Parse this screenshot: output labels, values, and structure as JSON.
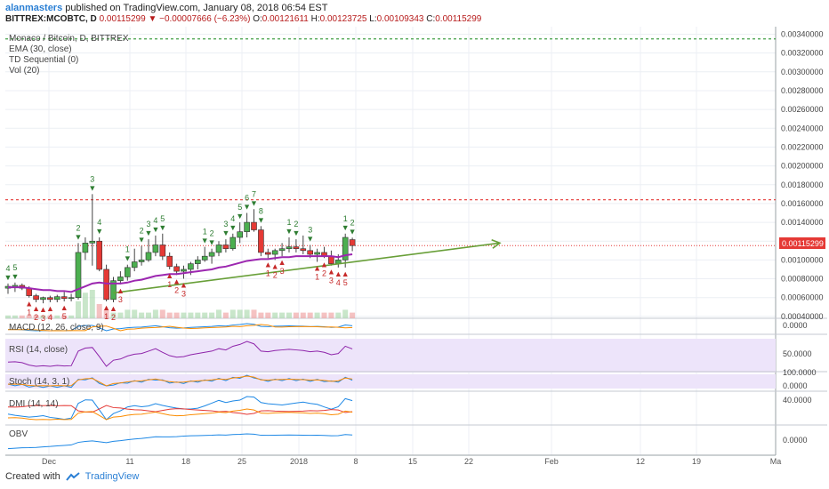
{
  "header": {
    "author": "alanmasters",
    "published": "published on TradingView.com, January 08, 2018 06:54 EST",
    "symbol_line": "BITTREX:MCOBTC, D",
    "last": "0.00115299",
    "change": "▼ −0.00007666 (−6.23%)",
    "o_label": "O:",
    "o_val": "0.00121611",
    "h_label": "H:",
    "h_val": "0.00123725",
    "l_label": "L:",
    "l_val": "0.00109343",
    "c_label": "C:",
    "c_val": "0.00115299"
  },
  "legend": {
    "title": "Monaco / Bitcoin, D, BITTREX",
    "ema": "EMA (30, close)",
    "td": "TD Sequential (0)",
    "vol": "Vol (20)"
  },
  "price_label": "0.00115299",
  "colors": {
    "up": "#4caf50",
    "down": "#e53935",
    "ema": "#9c27b0",
    "trend": "#689f38",
    "resistance": "#e53935",
    "top_line": "#43a047",
    "price_tag": "#e53935"
  },
  "panes": {
    "macd": {
      "label": "MACD (12, 26, close, 9)",
      "tick": "0.0000"
    },
    "rsi": {
      "label": "RSI (14, close)",
      "tick": "50.0000"
    },
    "stoch": {
      "label": "Stoch (14, 3, 1)",
      "tick": "100.0000",
      "tick2": "0.0000"
    },
    "dmi": {
      "label": "DMI (14, 14)",
      "tick": "40.0000"
    },
    "obv": {
      "label": "OBV",
      "tick": "0.0000"
    }
  },
  "footer": {
    "created": "Created with",
    "brand": "TradingView"
  },
  "chart_data": {
    "type": "candlestick",
    "title": "Monaco / Bitcoin, D, BITTREX",
    "y_ticks": [
      "0.00340000",
      "0.00320000",
      "0.00300000",
      "0.00280000",
      "0.00260000",
      "0.00240000",
      "0.00220000",
      "0.00200000",
      "0.00180000",
      "0.00160000",
      "0.00140000",
      "0.00120000",
      "0.00100000",
      "0.00080000",
      "0.00060000",
      "0.00040000"
    ],
    "ylim": [
      0.00038,
      0.00348
    ],
    "x_ticks": [
      "Dec",
      "11",
      "18",
      "25",
      "2018",
      "8",
      "15",
      "22",
      "Feb",
      "12",
      "19",
      "Ma"
    ],
    "grid": true,
    "horizontal_lines": [
      {
        "name": "top",
        "value": 0.00335
      },
      {
        "name": "resistance",
        "value": 0.00164
      },
      {
        "name": "last",
        "value": 0.001153
      }
    ],
    "candles": [
      {
        "o": 0.0007,
        "h": 0.00075,
        "l": 0.00064,
        "c": 0.00072
      },
      {
        "o": 0.00071,
        "h": 0.00076,
        "l": 0.00066,
        "c": 0.00073
      },
      {
        "o": 0.00073,
        "h": 0.00075,
        "l": 0.00068,
        "c": 0.0007
      },
      {
        "o": 0.0007,
        "h": 0.00072,
        "l": 0.0006,
        "c": 0.00062
      },
      {
        "o": 0.00062,
        "h": 0.00064,
        "l": 0.00055,
        "c": 0.00058
      },
      {
        "o": 0.00058,
        "h": 0.00061,
        "l": 0.00054,
        "c": 0.0006
      },
      {
        "o": 0.0006,
        "h": 0.00062,
        "l": 0.00055,
        "c": 0.00058
      },
      {
        "o": 0.00058,
        "h": 0.00063,
        "l": 0.00055,
        "c": 0.00061
      },
      {
        "o": 0.00061,
        "h": 0.00066,
        "l": 0.00056,
        "c": 0.00059
      },
      {
        "o": 0.00059,
        "h": 0.00064,
        "l": 0.00056,
        "c": 0.0006
      },
      {
        "o": 0.0006,
        "h": 0.00118,
        "l": 0.00058,
        "c": 0.00108
      },
      {
        "o": 0.00108,
        "h": 0.00124,
        "l": 0.001,
        "c": 0.00118
      },
      {
        "o": 0.00118,
        "h": 0.0017,
        "l": 0.00094,
        "c": 0.0012
      },
      {
        "o": 0.0012,
        "h": 0.00124,
        "l": 0.00088,
        "c": 0.0009
      },
      {
        "o": 0.0009,
        "h": 0.00095,
        "l": 0.00056,
        "c": 0.00058
      },
      {
        "o": 0.00058,
        "h": 0.00082,
        "l": 0.00055,
        "c": 0.00078
      },
      {
        "o": 0.00078,
        "h": 0.00088,
        "l": 0.00074,
        "c": 0.00082
      },
      {
        "o": 0.00082,
        "h": 0.00095,
        "l": 0.00078,
        "c": 0.00092
      },
      {
        "o": 0.00092,
        "h": 0.00112,
        "l": 0.00088,
        "c": 0.00098
      },
      {
        "o": 0.00098,
        "h": 0.00115,
        "l": 0.00094,
        "c": 0.001
      },
      {
        "o": 0.001,
        "h": 0.00122,
        "l": 0.00098,
        "c": 0.00108
      },
      {
        "o": 0.00108,
        "h": 0.00126,
        "l": 0.00104,
        "c": 0.00116
      },
      {
        "o": 0.00116,
        "h": 0.00128,
        "l": 0.001,
        "c": 0.00104
      },
      {
        "o": 0.00104,
        "h": 0.00108,
        "l": 0.0009,
        "c": 0.00093
      },
      {
        "o": 0.00093,
        "h": 0.00096,
        "l": 0.00084,
        "c": 0.00088
      },
      {
        "o": 0.00088,
        "h": 0.00094,
        "l": 0.0008,
        "c": 0.0009
      },
      {
        "o": 0.0009,
        "h": 0.00098,
        "l": 0.00084,
        "c": 0.00096
      },
      {
        "o": 0.00096,
        "h": 0.00104,
        "l": 0.0009,
        "c": 0.001
      },
      {
        "o": 0.001,
        "h": 0.00114,
        "l": 0.00098,
        "c": 0.00104
      },
      {
        "o": 0.00104,
        "h": 0.00112,
        "l": 0.00096,
        "c": 0.00108
      },
      {
        "o": 0.00108,
        "h": 0.0012,
        "l": 0.00104,
        "c": 0.00116
      },
      {
        "o": 0.00116,
        "h": 0.00122,
        "l": 0.00108,
        "c": 0.00112
      },
      {
        "o": 0.00112,
        "h": 0.00128,
        "l": 0.0011,
        "c": 0.00124
      },
      {
        "o": 0.00124,
        "h": 0.0014,
        "l": 0.00118,
        "c": 0.0013
      },
      {
        "o": 0.0013,
        "h": 0.0015,
        "l": 0.00124,
        "c": 0.0014
      },
      {
        "o": 0.0014,
        "h": 0.00154,
        "l": 0.0013,
        "c": 0.00132
      },
      {
        "o": 0.00132,
        "h": 0.00136,
        "l": 0.00104,
        "c": 0.00108
      },
      {
        "o": 0.00108,
        "h": 0.00112,
        "l": 0.00102,
        "c": 0.00106
      },
      {
        "o": 0.00106,
        "h": 0.00112,
        "l": 0.001,
        "c": 0.0011
      },
      {
        "o": 0.0011,
        "h": 0.00118,
        "l": 0.00104,
        "c": 0.00112
      },
      {
        "o": 0.00112,
        "h": 0.00124,
        "l": 0.00108,
        "c": 0.00114
      },
      {
        "o": 0.00114,
        "h": 0.00122,
        "l": 0.00108,
        "c": 0.00112
      },
      {
        "o": 0.00112,
        "h": 0.00126,
        "l": 0.00106,
        "c": 0.0011
      },
      {
        "o": 0.0011,
        "h": 0.00116,
        "l": 0.00102,
        "c": 0.00106
      },
      {
        "o": 0.00106,
        "h": 0.00112,
        "l": 0.00098,
        "c": 0.00108
      },
      {
        "o": 0.00108,
        "h": 0.00114,
        "l": 0.00102,
        "c": 0.00104
      },
      {
        "o": 0.00104,
        "h": 0.0011,
        "l": 0.00094,
        "c": 0.00096
      },
      {
        "o": 0.00096,
        "h": 0.00106,
        "l": 0.00092,
        "c": 0.001
      },
      {
        "o": 0.001,
        "h": 0.00128,
        "l": 0.00092,
        "c": 0.00124
      },
      {
        "o": 0.00121611,
        "h": 0.00123725,
        "l": 0.00109343,
        "c": 0.00115299
      }
    ],
    "ema": [
      0.00071,
      0.00071,
      0.00071,
      0.0007,
      0.00069,
      0.00068,
      0.00068,
      0.00067,
      0.00067,
      0.00066,
      0.00069,
      0.00072,
      0.00075,
      0.00076,
      0.00075,
      0.00075,
      0.00075,
      0.00076,
      0.00078,
      0.00079,
      0.00081,
      0.00083,
      0.00084,
      0.00085,
      0.00085,
      0.00086,
      0.00087,
      0.00088,
      0.00089,
      0.0009,
      0.00092,
      0.00093,
      0.00095,
      0.00097,
      0.00099,
      0.001,
      0.00101,
      0.00101,
      0.00102,
      0.00103,
      0.00103,
      0.00104,
      0.00104,
      0.00104,
      0.00104,
      0.00104,
      0.00104,
      0.00103,
      0.00105,
      0.00106
    ],
    "trend_line": [
      {
        "i": 15,
        "v": 0.00065
      },
      {
        "i": 70,
        "v": 0.00118
      }
    ],
    "volume": [
      1,
      1,
      1,
      1,
      1,
      1,
      1,
      1,
      1,
      1,
      6,
      9,
      10,
      5,
      3,
      2,
      2,
      3,
      3,
      2,
      2,
      3,
      3,
      2,
      2,
      2,
      2,
      2,
      2,
      2,
      3,
      2,
      3,
      3,
      3,
      3,
      2,
      2,
      2,
      2,
      2,
      2,
      2,
      2,
      2,
      2,
      2,
      2,
      3,
      2
    ],
    "td_up": [
      {
        "i": 0,
        "n": "4"
      },
      {
        "i": 1,
        "n": "5"
      },
      {
        "i": 10,
        "n": "2"
      },
      {
        "i": 12,
        "n": "3"
      },
      {
        "i": 13,
        "n": "4"
      },
      {
        "i": 17,
        "n": "1"
      },
      {
        "i": 19,
        "n": "2"
      },
      {
        "i": 20,
        "n": "3"
      },
      {
        "i": 21,
        "n": "4"
      },
      {
        "i": 22,
        "n": "5"
      },
      {
        "i": 28,
        "n": "1"
      },
      {
        "i": 29,
        "n": "2"
      },
      {
        "i": 31,
        "n": "3"
      },
      {
        "i": 32,
        "n": "4"
      },
      {
        "i": 33,
        "n": "5"
      },
      {
        "i": 34,
        "n": "6"
      },
      {
        "i": 35,
        "n": "7"
      },
      {
        "i": 36,
        "n": "8"
      },
      {
        "i": 40,
        "n": "1"
      },
      {
        "i": 41,
        "n": "2"
      },
      {
        "i": 43,
        "n": "3"
      },
      {
        "i": 48,
        "n": "1"
      },
      {
        "i": 49,
        "n": "2"
      }
    ],
    "td_dn": [
      {
        "i": 3,
        "n": "1"
      },
      {
        "i": 4,
        "n": "2"
      },
      {
        "i": 5,
        "n": "3"
      },
      {
        "i": 6,
        "n": "4"
      },
      {
        "i": 8,
        "n": "5"
      },
      {
        "i": 14,
        "n": "1"
      },
      {
        "i": 15,
        "n": "2"
      },
      {
        "i": 16,
        "n": "3"
      },
      {
        "i": 23,
        "n": "1"
      },
      {
        "i": 24,
        "n": "2"
      },
      {
        "i": 25,
        "n": "3"
      },
      {
        "i": 37,
        "n": "1"
      },
      {
        "i": 38,
        "n": "2"
      },
      {
        "i": 39,
        "n": "3"
      },
      {
        "i": 44,
        "n": "1"
      },
      {
        "i": 45,
        "n": "2"
      },
      {
        "i": 46,
        "n": "3"
      },
      {
        "i": 47,
        "n": "4"
      },
      {
        "i": 48,
        "n": "5"
      }
    ]
  }
}
